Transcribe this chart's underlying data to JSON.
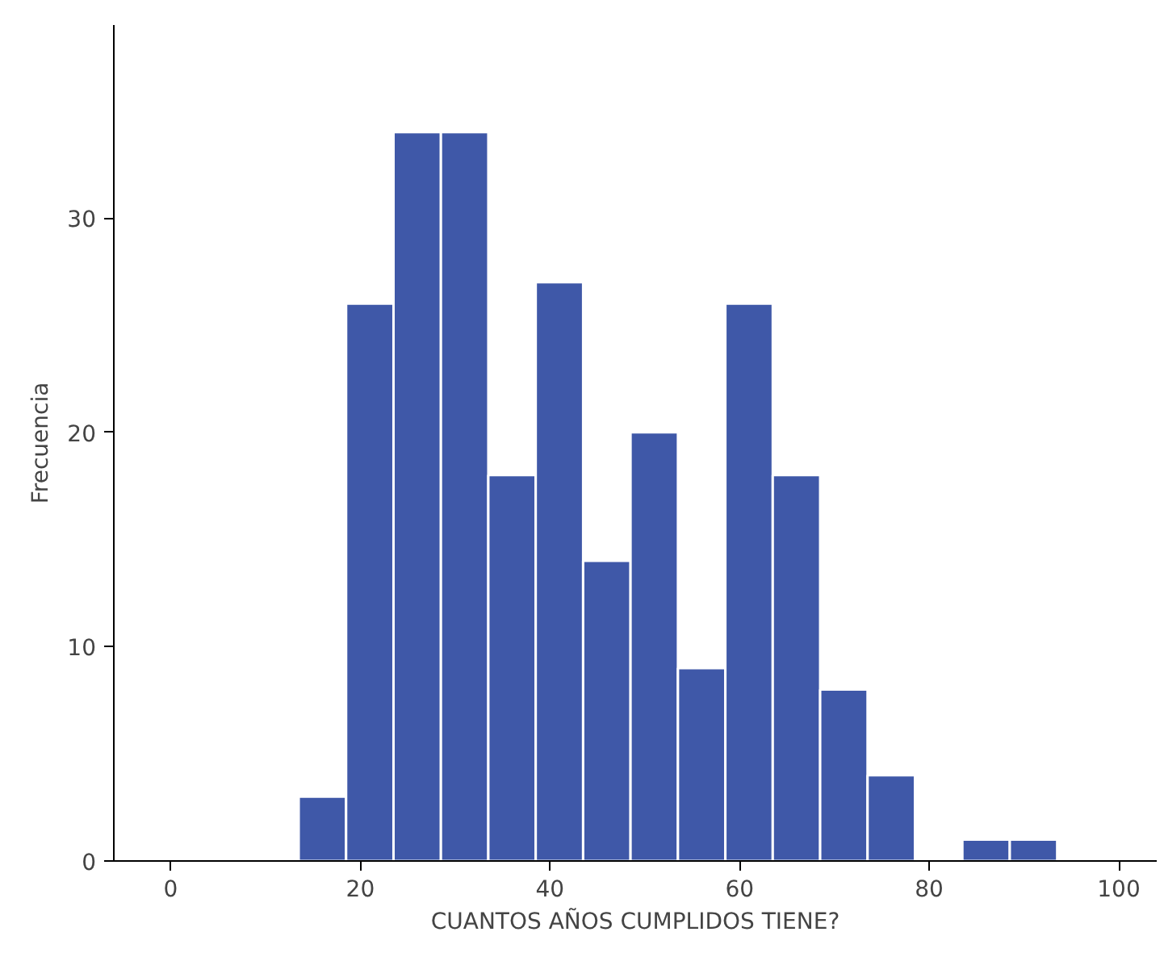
{
  "chart_data": {
    "type": "histogram",
    "xlabel": "CUANTOS AÑOS CUMPLIDOS TIENE?",
    "ylabel": "Frecuencia",
    "bins": [
      13.5,
      18.5,
      23.5,
      28.5,
      33.5,
      38.5,
      43.5,
      48.5,
      53.5,
      58.5,
      63.5,
      68.5,
      73.5,
      78.5,
      83.5,
      88.5,
      93.5
    ],
    "values": [
      3,
      26,
      34,
      34,
      18,
      27,
      14,
      20,
      9,
      26,
      18,
      8,
      4,
      0,
      1,
      1
    ],
    "color": "#3f58a8",
    "xlim": [
      -6,
      104
    ],
    "ylim": [
      0,
      39
    ],
    "xticks": [
      0,
      20,
      40,
      60,
      80,
      100
    ],
    "yticks": [
      0,
      10,
      20,
      30
    ],
    "grid": false
  }
}
